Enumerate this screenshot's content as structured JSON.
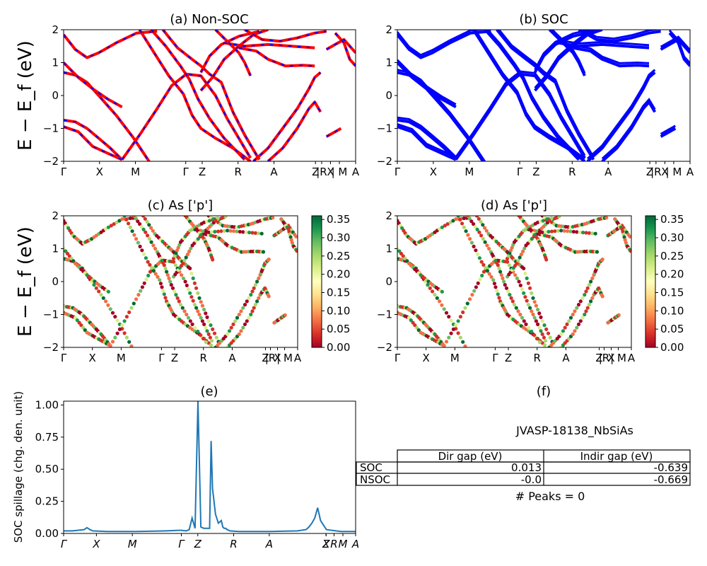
{
  "figure": {
    "common_ylabel": "E − E_f (eV)"
  },
  "kpath_labels": [
    "Γ",
    "X",
    "M",
    "Γ",
    "Z",
    "R",
    "A",
    "Z",
    "|R",
    "X",
    "| M",
    "A"
  ],
  "kpath_labels_e": [
    "Γ",
    "X",
    "M",
    "Γ",
    "Z",
    "R",
    "A",
    "Z",
    "X",
    "R",
    "M",
    "A"
  ],
  "colors": {
    "soc_band": "#0000ff",
    "nonsoc_band": "#ff0000",
    "spillage_line": "#1f77b4",
    "colormap": "RdYlGn"
  },
  "chart_data": [
    {
      "panel": "a",
      "type": "line",
      "title": "(a) Non-SOC",
      "ylabel": "E − E_f (eV)",
      "ylim": [
        -2,
        2
      ],
      "yticks": [
        "2",
        "1",
        "0",
        "−1",
        "−2"
      ],
      "series": [
        {
          "name": "",
          "color": "#ff0000",
          "style": "solid",
          "note_points": [
            [
              0,
              1.9
            ],
            [
              0.5,
              0.9
            ],
            [
              1,
              0.6
            ],
            [
              1.5,
              -0.9
            ],
            [
              2,
              -1.9
            ]
          ]
        },
        {
          "name": "",
          "color": "#0000ff",
          "style": "dashed",
          "note_points": [
            [
              0,
              1.9
            ],
            [
              0.5,
              0.9
            ],
            [
              1,
              0.6
            ],
            [
              1.5,
              -0.9
            ],
            [
              2,
              -1.9
            ]
          ]
        }
      ]
    },
    {
      "panel": "b",
      "type": "line",
      "title": "(b) SOC",
      "ylim": [
        -2,
        2
      ],
      "yticks": [
        "2",
        "1",
        "0",
        "−1",
        "−2"
      ]
    },
    {
      "panel": "c",
      "type": "scatter",
      "title": "(c)  As ['p']",
      "ylabel": "E − E_f (eV)",
      "ylim": [
        -2,
        2
      ],
      "yticks": [
        "2",
        "1",
        "0",
        "−1",
        "−2"
      ],
      "colorbar_ticks": [
        "0.35",
        "0.30",
        "0.25",
        "0.20",
        "0.15",
        "0.10",
        "0.05",
        "0.00"
      ]
    },
    {
      "panel": "d",
      "type": "scatter",
      "title": "(d) As ['p']",
      "ylim": [
        -2,
        2
      ],
      "yticks": [
        "2",
        "1",
        "0",
        "−1",
        "−2"
      ],
      "colorbar_ticks": [
        "0.35",
        "0.30",
        "0.25",
        "0.20",
        "0.15",
        "0.10",
        "0.05",
        "0.00"
      ]
    },
    {
      "panel": "e",
      "type": "line",
      "title": "(e)",
      "ylabel": "SOC spillage (chg. den. unit)",
      "ylim": [
        0,
        1.03
      ],
      "yticks": [
        "1.00",
        "0.75",
        "0.50",
        "0.25",
        "0.00"
      ],
      "x": [
        0.0,
        0.03,
        0.05,
        0.07,
        0.08,
        0.09,
        0.1,
        0.15,
        0.25,
        0.35,
        0.4,
        0.42,
        0.43,
        0.44,
        0.45,
        0.46,
        0.47,
        0.48,
        0.49,
        0.5,
        0.505,
        0.51,
        0.52,
        0.53,
        0.54,
        0.545,
        0.55,
        0.555,
        0.56,
        0.57,
        0.6,
        0.7,
        0.8,
        0.83,
        0.84,
        0.85,
        0.86,
        0.87,
        0.875,
        0.88,
        0.9,
        0.95,
        1.0
      ],
      "y": [
        0.02,
        0.02,
        0.025,
        0.03,
        0.045,
        0.03,
        0.02,
        0.015,
        0.015,
        0.02,
        0.025,
        0.02,
        0.03,
        0.12,
        0.04,
        1.03,
        0.05,
        0.04,
        0.04,
        0.04,
        0.72,
        0.35,
        0.15,
        0.08,
        0.1,
        0.05,
        0.04,
        0.04,
        0.03,
        0.02,
        0.015,
        0.015,
        0.02,
        0.03,
        0.05,
        0.08,
        0.12,
        0.2,
        0.15,
        0.1,
        0.03,
        0.015,
        0.015
      ]
    },
    {
      "panel": "f",
      "type": "table",
      "title": "(f)",
      "subtitle": "JVASP-18138_NbSiAs",
      "columns": [
        "Dir gap (eV)",
        "Indir gap (eV)"
      ],
      "rows": [
        {
          "label": "SOC",
          "values": [
            "0.013",
            "-0.639"
          ]
        },
        {
          "label": "NSOC",
          "values": [
            "-0.0",
            "-0.669"
          ]
        }
      ],
      "footer": "# Peaks = 0"
    }
  ]
}
